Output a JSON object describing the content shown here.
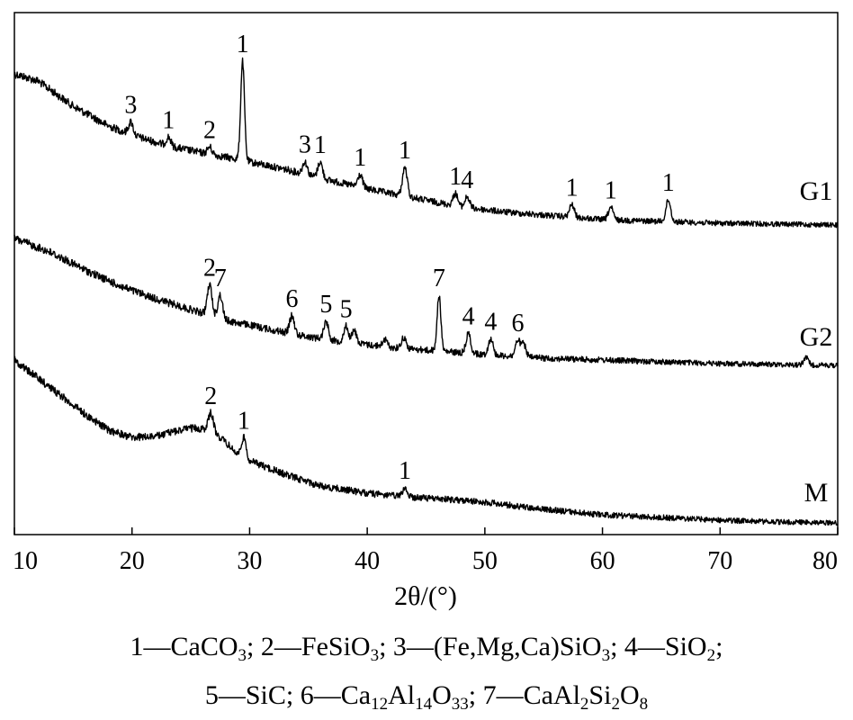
{
  "chart_data": {
    "type": "line",
    "xlabel": "2θ/(°)",
    "xlim": [
      10,
      80
    ],
    "x_ticks": [
      10,
      20,
      30,
      40,
      50,
      60,
      70,
      80
    ],
    "y_axis_ticks": "none",
    "series": [
      {
        "name": "G1",
        "baseline": [
          [
            10,
            82
          ],
          [
            12,
            90
          ],
          [
            15,
            118
          ],
          [
            18,
            140
          ],
          [
            20,
            150
          ],
          [
            23,
            162
          ],
          [
            26,
            170
          ],
          [
            29,
            177
          ],
          [
            30,
            180
          ],
          [
            33,
            188
          ],
          [
            36,
            198
          ],
          [
            40,
            210
          ],
          [
            44,
            220
          ],
          [
            48,
            230
          ],
          [
            52,
            236
          ],
          [
            56,
            240
          ],
          [
            60,
            244
          ],
          [
            65,
            246
          ],
          [
            70,
            248
          ],
          [
            75,
            249
          ],
          [
            80,
            250
          ]
        ],
        "peaks": [
          {
            "x": 19.9,
            "h": 14,
            "label": "3"
          },
          {
            "x": 23.1,
            "h": 10,
            "label": "1"
          },
          {
            "x": 26.6,
            "h": 8,
            "label": "2"
          },
          {
            "x": 29.4,
            "h": 110,
            "label": "1"
          },
          {
            "x": 34.7,
            "h": 14,
            "label": "3"
          },
          {
            "x": 36.0,
            "h": 18,
            "label": "1"
          },
          {
            "x": 39.4,
            "h": 14,
            "label": "1"
          },
          {
            "x": 43.2,
            "h": 32,
            "label": "1"
          },
          {
            "x": 47.5,
            "h": 14,
            "label": "1"
          },
          {
            "x": 48.5,
            "h": 12,
            "label": "4"
          },
          {
            "x": 57.4,
            "h": 14,
            "label": "1"
          },
          {
            "x": 60.7,
            "h": 14,
            "label": "1"
          },
          {
            "x": 65.6,
            "h": 24,
            "label": "1"
          }
        ]
      },
      {
        "name": "G2",
        "baseline": [
          [
            10,
            265
          ],
          [
            13,
            280
          ],
          [
            16,
            300
          ],
          [
            19,
            318
          ],
          [
            22,
            332
          ],
          [
            25,
            344
          ],
          [
            28,
            356
          ],
          [
            31,
            364
          ],
          [
            34,
            372
          ],
          [
            38,
            380
          ],
          [
            42,
            386
          ],
          [
            46,
            390
          ],
          [
            50,
            394
          ],
          [
            55,
            398
          ],
          [
            60,
            400
          ],
          [
            65,
            402
          ],
          [
            70,
            404
          ],
          [
            75,
            405
          ],
          [
            80,
            406
          ]
        ],
        "peaks": [
          {
            "x": 26.6,
            "h": 34,
            "label": "2"
          },
          {
            "x": 27.5,
            "h": 26,
            "label": "7"
          },
          {
            "x": 33.6,
            "h": 20,
            "label": "6"
          },
          {
            "x": 36.5,
            "h": 20,
            "label": "5"
          },
          {
            "x": 38.2,
            "h": 18,
            "label": "5"
          },
          {
            "x": 38.9,
            "h": 14,
            "label": ""
          },
          {
            "x": 41.5,
            "h": 8,
            "label": ""
          },
          {
            "x": 43.1,
            "h": 12,
            "label": ""
          },
          {
            "x": 46.1,
            "h": 62,
            "label": "7"
          },
          {
            "x": 48.6,
            "h": 22,
            "label": "4"
          },
          {
            "x": 50.5,
            "h": 18,
            "label": "4"
          },
          {
            "x": 52.8,
            "h": 18,
            "label": "6"
          },
          {
            "x": 53.3,
            "h": 14,
            "label": ""
          },
          {
            "x": 77.3,
            "h": 8,
            "label": ""
          }
        ]
      },
      {
        "name": "M",
        "baseline": [
          [
            10,
            400
          ],
          [
            12,
            420
          ],
          [
            14,
            440
          ],
          [
            16,
            460
          ],
          [
            18,
            478
          ],
          [
            20,
            486
          ],
          [
            22,
            485
          ],
          [
            24,
            478
          ],
          [
            25,
            476
          ],
          [
            26,
            476
          ],
          [
            27,
            480
          ],
          [
            28,
            492
          ],
          [
            29,
            505
          ],
          [
            30,
            512
          ],
          [
            33,
            527
          ],
          [
            36,
            540
          ],
          [
            40,
            548
          ],
          [
            43,
            552
          ],
          [
            47,
            555
          ],
          [
            50,
            558
          ],
          [
            55,
            566
          ],
          [
            60,
            572
          ],
          [
            65,
            575
          ],
          [
            70,
            578
          ],
          [
            75,
            580
          ],
          [
            80,
            581
          ]
        ],
        "peaks": [
          {
            "x": 26.7,
            "h": 20,
            "label": "2"
          },
          {
            "x": 29.5,
            "h": 22,
            "label": "1"
          },
          {
            "x": 43.2,
            "h": 10,
            "label": "1"
          }
        ]
      }
    ],
    "legend_lines": [
      [
        "1—CaCO",
        "3",
        "; 2—FeSiO",
        "3",
        "; 3—(Fe,Mg,Ca)SiO",
        "3",
        "; 4—SiO",
        "2",
        ";"
      ],
      [
        "5—SiC; 6—Ca",
        "12",
        "Al",
        "14",
        "O",
        "33",
        "; 7—CaAl",
        "2",
        "Si",
        "2",
        "O",
        "8"
      ]
    ]
  }
}
